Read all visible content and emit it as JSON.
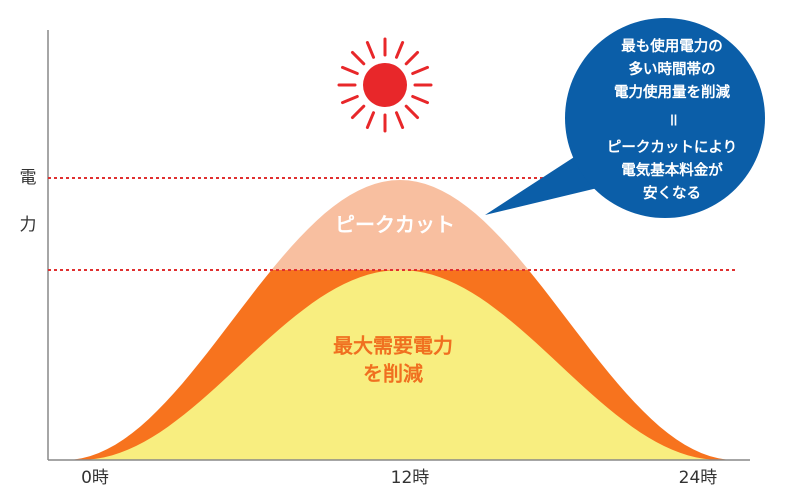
{
  "axis": {
    "y_label": [
      "電",
      "力"
    ],
    "x_labels": [
      "0時",
      "12時",
      "24時"
    ]
  },
  "areas": {
    "peak_cut": "ピークカット",
    "reduction": [
      "最大需要電力",
      "を削減"
    ]
  },
  "bubble": {
    "lines": [
      "最も使用電力の",
      "多い時間帯の",
      "電力使用量を削減",
      "＝",
      "ピークカットにより",
      "電気基本料金が",
      "安くなる"
    ]
  }
}
